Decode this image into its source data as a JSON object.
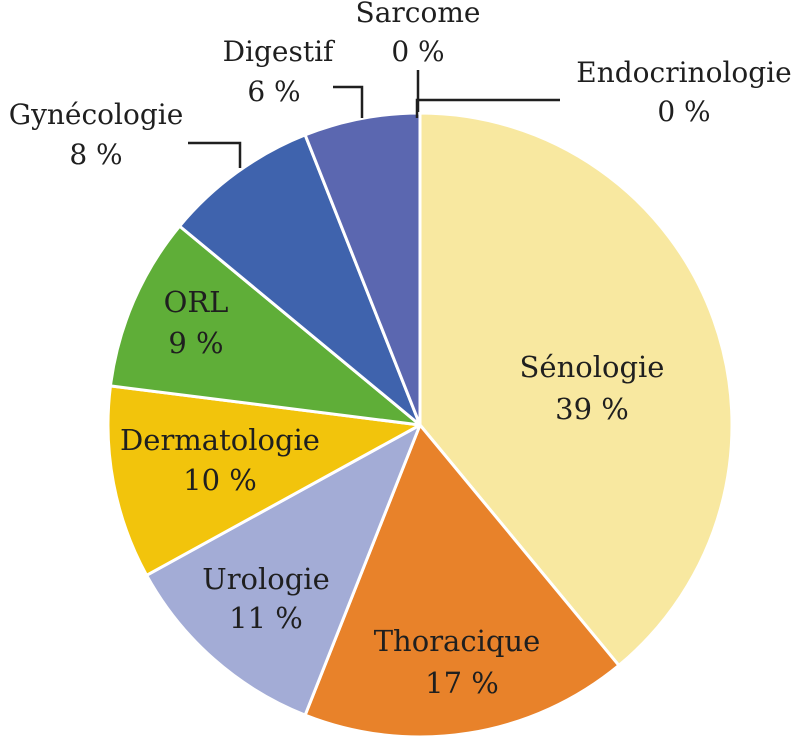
{
  "chart_data": {
    "type": "pie",
    "title": "",
    "start_angle_deg": 0,
    "direction": "clockwise",
    "slices": [
      {
        "label": "Endocrinologie",
        "value": 0,
        "value_label": "0 %",
        "color": "#ffffff",
        "label_position": "outside"
      },
      {
        "label": "Sénologie",
        "value": 39,
        "value_label": "39 %",
        "color": "#f8e8a0",
        "label_position": "inside"
      },
      {
        "label": "Thoracique",
        "value": 17,
        "value_label": "17 %",
        "color": "#e8822a",
        "label_position": "inside"
      },
      {
        "label": "Urologie",
        "value": 11,
        "value_label": "11 %",
        "color": "#a3acd6",
        "label_position": "inside"
      },
      {
        "label": "Dermatologie",
        "value": 10,
        "value_label": "10 %",
        "color": "#f2c40c",
        "label_position": "inside"
      },
      {
        "label": "ORL",
        "value": 9,
        "value_label": "9 %",
        "color": "#5fae38",
        "label_position": "inside"
      },
      {
        "label": "Gynécologie",
        "value": 8,
        "value_label": "8 %",
        "color": "#3f63ad",
        "label_position": "outside"
      },
      {
        "label": "Digestif",
        "value": 6,
        "value_label": "6 %",
        "color": "#5b67b0",
        "label_position": "outside"
      },
      {
        "label": "Sarcome",
        "value": 0,
        "value_label": "0 %",
        "color": "#ffffff",
        "label_position": "outside"
      }
    ]
  }
}
